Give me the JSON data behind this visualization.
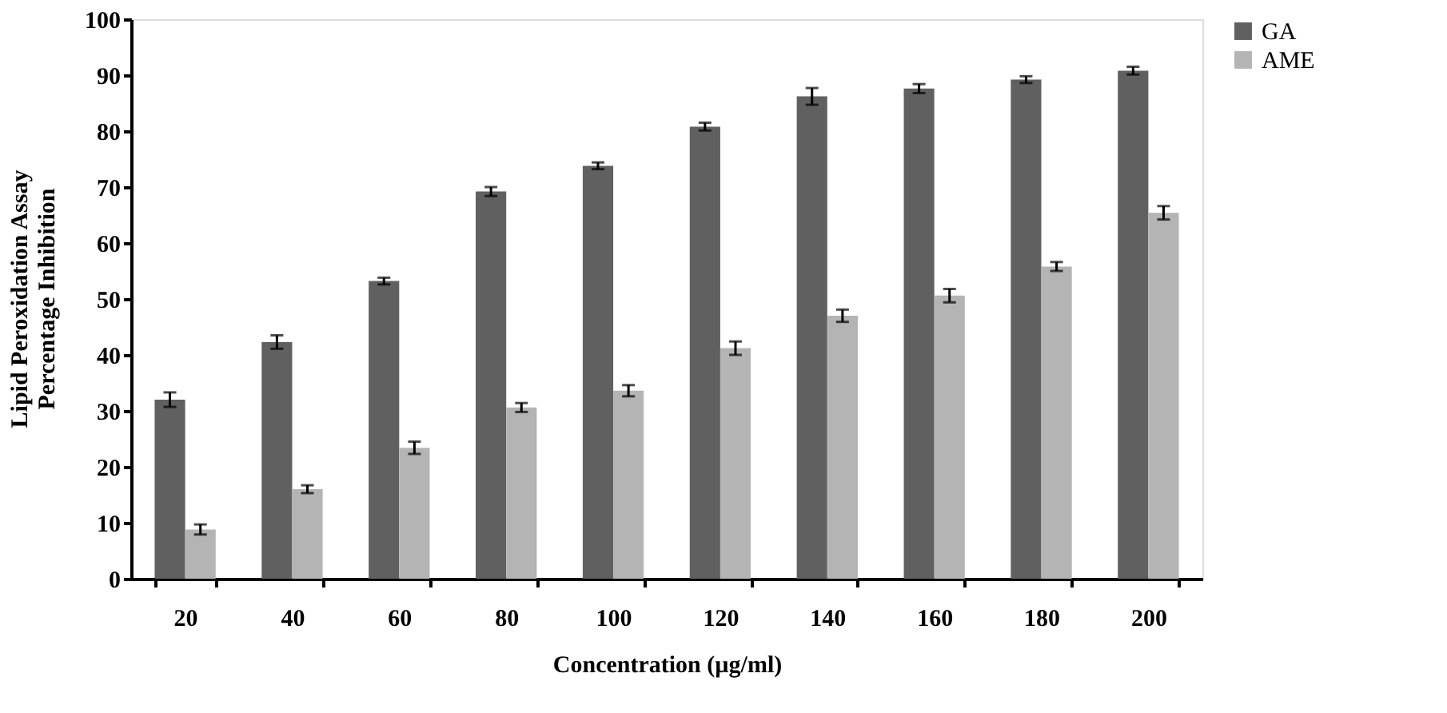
{
  "chart_data": {
    "type": "bar",
    "xlabel": "Concentration (µg/ml)",
    "ylabel": "Lipid Peroxidation Assay\nPercentage Inhibition",
    "categories": [
      "20",
      "40",
      "60",
      "80",
      "100",
      "120",
      "140",
      "160",
      "180",
      "200"
    ],
    "series": [
      {
        "name": "GA",
        "color": "#606060",
        "values": [
          32,
          42.3,
          53.2,
          69.2,
          73.8,
          80.8,
          86.2,
          87.6,
          89.2,
          90.8
        ],
        "errors": [
          1.3,
          1.2,
          0.6,
          0.8,
          0.6,
          0.7,
          1.5,
          0.8,
          0.6,
          0.7
        ]
      },
      {
        "name": "AME",
        "color": "#b4b4b4",
        "values": [
          8.8,
          16,
          23.4,
          30.6,
          33.6,
          41.2,
          47,
          50.6,
          55.8,
          65.4
        ],
        "errors": [
          0.9,
          0.7,
          1.1,
          0.8,
          1.0,
          1.2,
          1.1,
          1.2,
          0.8,
          1.2
        ]
      }
    ],
    "ylim": [
      0,
      100
    ],
    "yticks": [
      0,
      10,
      20,
      30,
      40,
      50,
      60,
      70,
      80,
      90,
      100
    ],
    "grid": false,
    "legend": "right"
  }
}
